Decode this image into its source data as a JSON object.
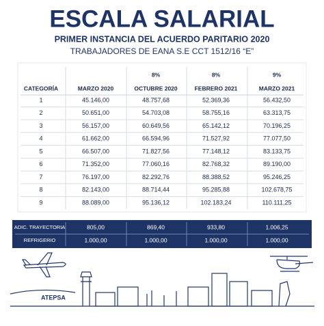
{
  "header": {
    "title": "ESCALA SALARIAL",
    "subtitle": "PRIMER INSTANCIA DEL ACUERDO PARITARIO 2020",
    "caption": "TRABAJADORES DE EANA S.E CCT 1512/16 “E”"
  },
  "table": {
    "increases": [
      "8%",
      "8%",
      "9%"
    ],
    "columns": [
      "CATEGORÍA",
      "MARZO 2020",
      "OCTUBRE 2020",
      "FEBRERO  2021",
      "MARZO  2021"
    ],
    "rows": [
      [
        "1",
        "45.146,00",
        "48.757,68",
        "52.369,36",
        "56.432,50"
      ],
      [
        "2",
        "50.651,00",
        "54.703,08",
        "58.755,16",
        "63.313,75"
      ],
      [
        "3",
        "56.157,00",
        "60.649,56",
        "65.142,12",
        "70.196,25"
      ],
      [
        "4",
        "61.662,00",
        "66.594,96",
        "71.527,92",
        "77.077,50"
      ],
      [
        "5",
        "66.507,00",
        "71.827,56",
        "77.148,12",
        "83.133,75"
      ],
      [
        "6",
        "71.352,00",
        "77.060,16",
        "82.768,32",
        "89.190,00"
      ],
      [
        "7",
        "76.197,00",
        "82.292,76",
        "88.388,52",
        "95.246,25"
      ],
      [
        "8",
        "82.143,00",
        "88.714,44",
        "95.285,88",
        "102.678,75"
      ],
      [
        "9",
        "88.089,00",
        "95.136,12",
        "102.183,24",
        "110.111,25"
      ]
    ]
  },
  "extras": {
    "rows": [
      [
        "ADIC. TRAYECTORIA",
        "805,00",
        "869,40",
        "933,80",
        "1.006,25"
      ],
      [
        "REFRIGERIO",
        "1.000,00",
        "1.000,00",
        "1.000,00",
        "1.000,00"
      ]
    ]
  },
  "logo": "ATEPSA"
}
